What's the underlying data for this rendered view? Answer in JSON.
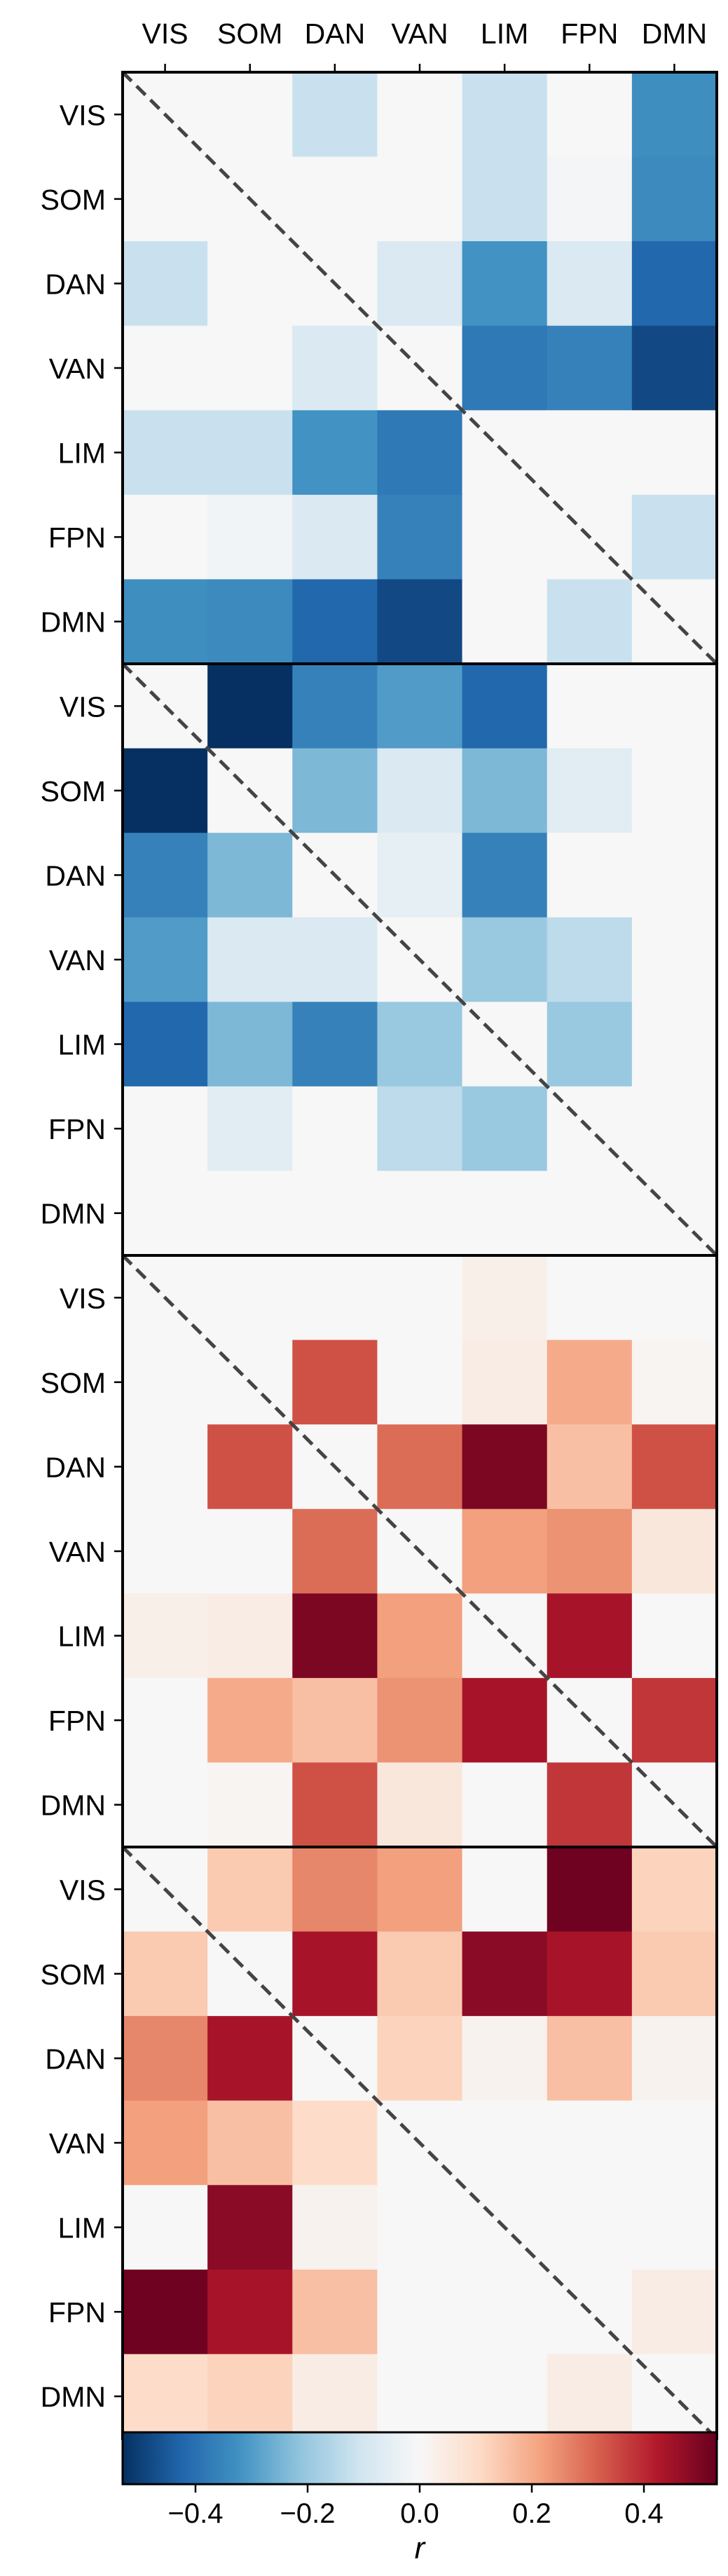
{
  "chart_data": {
    "type": "heatmap",
    "networks": [
      "VIS",
      "SOM",
      "DAN",
      "VAN",
      "LIM",
      "FPN",
      "DMN"
    ],
    "panels": [
      {
        "values": [
          [
            0.0,
            0.0,
            -0.12,
            0.0,
            -0.12,
            0.0,
            -0.33
          ],
          [
            0.0,
            0.0,
            0.0,
            0.0,
            -0.12,
            -0.01,
            -0.34
          ],
          [
            -0.12,
            0.0,
            0.0,
            -0.08,
            -0.32,
            -0.08,
            -0.42
          ],
          [
            0.0,
            0.0,
            -0.08,
            0.0,
            -0.38,
            -0.36,
            -0.48
          ],
          [
            -0.12,
            -0.12,
            -0.32,
            -0.38,
            0.0,
            0.0,
            0.0
          ],
          [
            0.0,
            -0.02,
            -0.08,
            -0.36,
            0.0,
            0.0,
            -0.12
          ],
          [
            -0.33,
            -0.34,
            -0.42,
            -0.48,
            0.0,
            -0.12,
            0.0
          ]
        ]
      },
      {
        "values": [
          [
            0.0,
            -0.55,
            -0.36,
            -0.3,
            -0.42,
            0.0,
            0.0
          ],
          [
            -0.55,
            0.0,
            -0.24,
            -0.08,
            -0.24,
            -0.06,
            0.0
          ],
          [
            -0.36,
            -0.24,
            0.0,
            -0.05,
            -0.36,
            0.0,
            0.0
          ],
          [
            -0.3,
            -0.08,
            -0.08,
            0.0,
            -0.2,
            -0.14,
            0.0
          ],
          [
            -0.42,
            -0.24,
            -0.36,
            -0.2,
            0.0,
            -0.2,
            0.0
          ],
          [
            0.0,
            -0.06,
            0.0,
            -0.14,
            -0.2,
            0.0,
            0.0
          ],
          [
            0.0,
            0.0,
            0.0,
            0.0,
            0.0,
            0.0,
            0.0
          ]
        ]
      },
      {
        "values": [
          [
            0.0,
            0.0,
            0.0,
            0.0,
            0.03,
            0.0,
            0.0
          ],
          [
            0.0,
            0.0,
            0.34,
            0.0,
            0.04,
            0.2,
            0.01
          ],
          [
            0.0,
            0.34,
            0.0,
            0.3,
            0.5,
            0.16,
            0.34
          ],
          [
            0.0,
            0.0,
            0.3,
            0.0,
            0.22,
            0.24,
            0.06
          ],
          [
            0.03,
            0.04,
            0.5,
            0.22,
            0.0,
            0.44,
            0.0
          ],
          [
            0.0,
            0.2,
            0.16,
            0.24,
            0.44,
            0.0,
            0.38
          ],
          [
            0.0,
            0.01,
            0.34,
            0.06,
            0.0,
            0.38,
            0.0
          ]
        ]
      },
      {
        "values": [
          [
            0.0,
            0.14,
            0.26,
            0.22,
            0.0,
            0.52,
            0.12
          ],
          [
            0.14,
            0.0,
            0.44,
            0.14,
            0.48,
            0.44,
            0.14
          ],
          [
            0.26,
            0.44,
            0.0,
            0.12,
            0.02,
            0.16,
            0.02
          ],
          [
            0.22,
            0.16,
            0.1,
            0.0,
            0.0,
            0.0,
            0.0
          ],
          [
            0.0,
            0.48,
            0.02,
            0.0,
            0.0,
            0.0,
            0.0
          ],
          [
            0.52,
            0.44,
            0.16,
            0.0,
            0.0,
            0.0,
            0.04
          ],
          [
            0.1,
            0.12,
            0.04,
            0.0,
            0.0,
            0.04,
            0.0
          ]
        ]
      }
    ],
    "diagonal_line": "dashed, top-left to bottom-right in each panel",
    "colorbar": {
      "label": "r",
      "range": [
        -0.53,
        0.53
      ],
      "ticks": [
        -0.4,
        -0.2,
        0.0,
        0.2,
        0.4
      ],
      "tick_labels": [
        "−0.4",
        "−0.2",
        "0.0",
        "0.2",
        "0.4"
      ],
      "colormap": "RdBu_r",
      "placement": "bottom, horizontal"
    },
    "x_axis_position": "top",
    "grid": false
  }
}
